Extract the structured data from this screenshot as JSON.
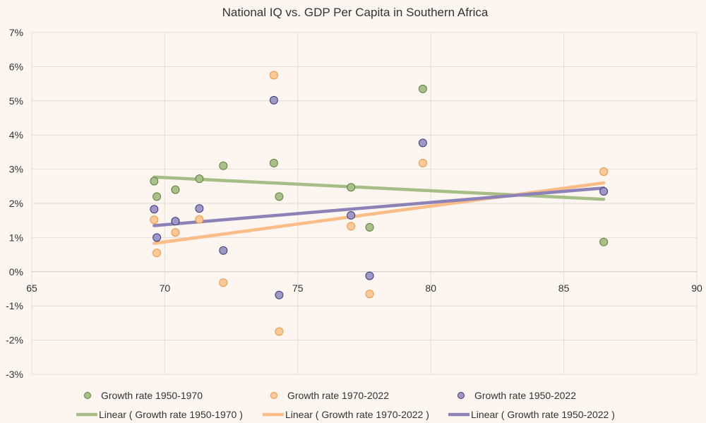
{
  "chart_data": {
    "type": "scatter",
    "title": "National IQ vs. GDP Per Capita in Southern Africa",
    "xlabel": "",
    "ylabel": "",
    "xlim": [
      65,
      90
    ],
    "ylim": [
      -3,
      7
    ],
    "x_ticks": [
      65,
      70,
      75,
      80,
      85,
      90
    ],
    "y_ticks": [
      -3,
      -2,
      -1,
      0,
      1,
      2,
      3,
      4,
      5,
      6,
      7
    ],
    "y_tick_labels": [
      "-3%",
      "-2%",
      "-1%",
      "0%",
      "1%",
      "2%",
      "3%",
      "4%",
      "5%",
      "6%",
      "7%"
    ],
    "grid": true,
    "legend_position": "bottom",
    "series": [
      {
        "name": "Growth rate 1950-1970",
        "color": "#a9c08a",
        "stroke": "#5c7f3a",
        "points": [
          [
            69.6,
            2.65
          ],
          [
            69.7,
            2.2
          ],
          [
            70.4,
            2.4
          ],
          [
            71.3,
            2.72
          ],
          [
            72.2,
            3.1
          ],
          [
            74.1,
            3.18
          ],
          [
            74.3,
            2.2
          ],
          [
            77.0,
            2.47
          ],
          [
            77.7,
            1.3
          ],
          [
            79.7,
            5.35
          ],
          [
            86.5,
            0.87
          ]
        ]
      },
      {
        "name": "Growth rate 1970-2022",
        "color": "#fcc99a",
        "stroke": "#f0953e",
        "points": [
          [
            69.6,
            1.52
          ],
          [
            69.7,
            0.55
          ],
          [
            70.4,
            1.15
          ],
          [
            71.3,
            1.53
          ],
          [
            72.2,
            -0.32
          ],
          [
            74.1,
            5.75
          ],
          [
            74.3,
            -1.75
          ],
          [
            77.0,
            1.33
          ],
          [
            77.7,
            -0.65
          ],
          [
            79.7,
            3.18
          ],
          [
            86.5,
            2.93
          ]
        ]
      },
      {
        "name": "Growth rate 1950-2022",
        "color": "#9e98c7",
        "stroke": "#3e3875",
        "points": [
          [
            69.6,
            1.83
          ],
          [
            69.7,
            1.0
          ],
          [
            70.4,
            1.48
          ],
          [
            71.3,
            1.85
          ],
          [
            72.2,
            0.62
          ],
          [
            74.1,
            5.02
          ],
          [
            74.3,
            -0.68
          ],
          [
            77.0,
            1.65
          ],
          [
            77.7,
            -0.12
          ],
          [
            79.7,
            3.77
          ],
          [
            86.5,
            2.35
          ]
        ]
      }
    ],
    "trendlines": [
      {
        "name": "Linear ( Growth rate 1950-1970 )",
        "color": "#a6bd86",
        "from": [
          69.6,
          2.77
        ],
        "to": [
          86.5,
          2.12
        ]
      },
      {
        "name": "Linear ( Growth rate 1970-2022 )",
        "color": "#fcbc86",
        "from": [
          69.6,
          0.83
        ],
        "to": [
          86.5,
          2.6
        ]
      },
      {
        "name": "Linear ( Growth rate 1950-2022 )",
        "color": "#8c82b8",
        "from": [
          69.6,
          1.35
        ],
        "to": [
          86.5,
          2.45
        ]
      }
    ]
  }
}
